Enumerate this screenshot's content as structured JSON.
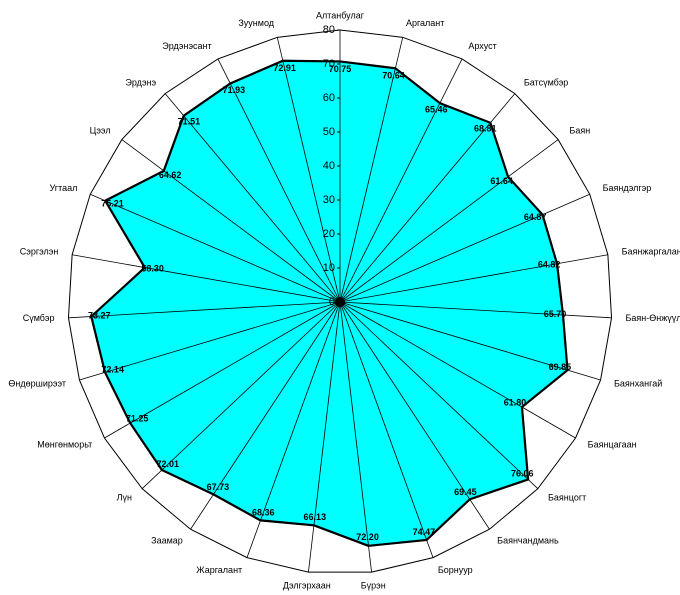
{
  "chart_data": {
    "type": "radar",
    "categories": [
      "Алтанбулаг",
      "Аргалант",
      "Архуст",
      "Батсүмбэр",
      "Баян",
      "Баяндэлгэр",
      "Баянжаргалан",
      "Баян-Өнжүүл",
      "Баянхангай",
      "Баянцагаан",
      "Баянцогт",
      "Баянчандмань",
      "Борнуур",
      "Бүрэн",
      "Дэлгэрхаан",
      "Жаргалант",
      "Заамар",
      "Лүн",
      "Мөнгөнморьт",
      "Өндөрширээт",
      "Сүмбэр",
      "Сэргэлэн",
      "Угтаал",
      "Цээл",
      "Эрдэнэ",
      "Эрдэнэсант",
      "Зуунмод"
    ],
    "values": [
      70.75,
      70.64,
      65.46,
      68.81,
      61.64,
      64.87,
      64.82,
      65.7,
      69.85,
      61.8,
      76.06,
      69.45,
      74.47,
      72.2,
      66.13,
      68.36,
      67.73,
      72.01,
      71.25,
      72.14,
      73.27,
      58.3,
      75.21,
      64.62,
      71.51,
      71.93,
      72.91
    ],
    "value_labels": [
      "70.75",
      "70.64",
      "65.46",
      "68.81",
      "61.64",
      "64.87",
      "64.82",
      "65.70",
      "69.85",
      "61.80",
      "76.06",
      "69.45",
      "74.47",
      "72.20",
      "66.13",
      "68.36",
      "67.73",
      "72.01",
      "71.25",
      "72.14",
      "73.27",
      "58.30",
      "75.21",
      "64.62",
      "71.51",
      "71.93",
      "72.91"
    ],
    "color": "#00ffff",
    "ylim": [
      0,
      80
    ],
    "yticks": [
      0,
      10,
      20,
      30,
      40,
      50,
      60,
      70,
      80
    ]
  }
}
